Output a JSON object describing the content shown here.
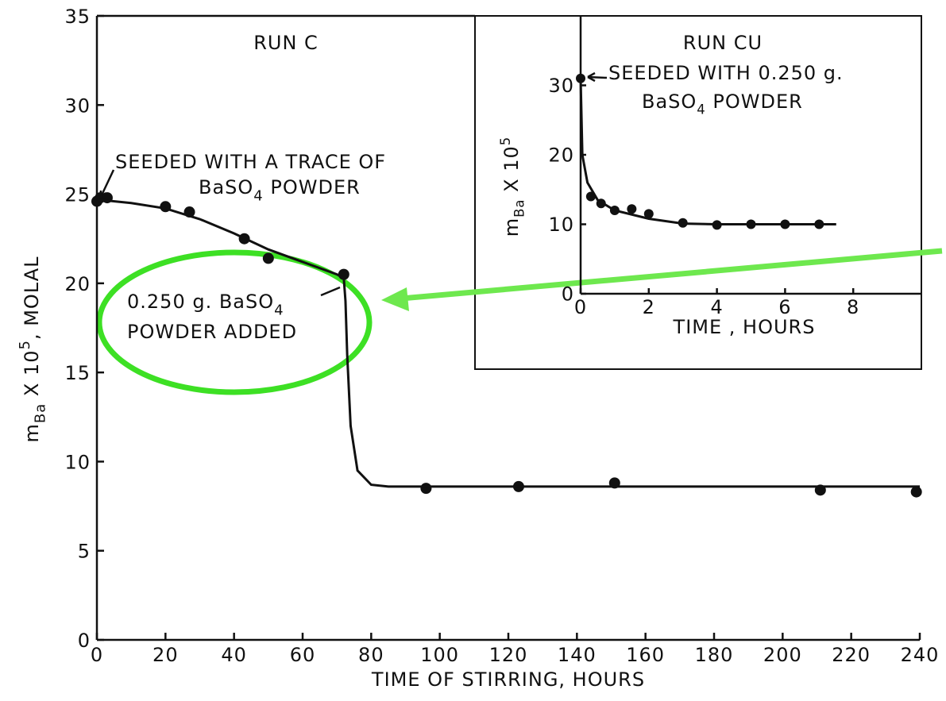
{
  "chart_data": [
    {
      "type": "scatter",
      "title": "RUN C",
      "xlabel": "TIME OF STIRRING, HOURS",
      "ylabel": [
        {
          "t": "m"
        },
        {
          "t": "Ba",
          "s": "sub"
        },
        {
          "t": " X 10"
        },
        {
          "t": "5",
          "s": "sup"
        },
        {
          "t": ", MOLAL"
        }
      ],
      "xlim": [
        0,
        240
      ],
      "ylim": [
        0,
        35
      ],
      "xticks": [
        0,
        20,
        40,
        60,
        80,
        100,
        120,
        140,
        160,
        180,
        200,
        220,
        240
      ],
      "yticks": [
        0,
        5,
        10,
        15,
        20,
        25,
        30,
        35
      ],
      "annotations": [
        [
          {
            "t": "SEEDED WITH A TRACE OF"
          }
        ],
        [
          {
            "t": "BaSO"
          },
          {
            "t": "4",
            "s": "sub"
          },
          {
            "t": " POWDER"
          }
        ],
        [
          {
            "t": "0.250 g. BaSO"
          },
          {
            "t": "4",
            "s": "sub"
          }
        ],
        [
          {
            "t": "POWDER ADDED"
          }
        ]
      ],
      "series": [
        {
          "color": "#111",
          "x": [
            0,
            1,
            3,
            20,
            27,
            43,
            50,
            72,
            96,
            123,
            151,
            211,
            239
          ],
          "values": [
            24.6,
            24.8,
            24.8,
            24.3,
            24.0,
            22.5,
            21.4,
            20.5,
            8.5,
            8.6,
            8.8,
            8.4,
            8.3
          ]
        },
        {
          "type": "line",
          "color": "#111",
          "x": [
            0,
            10,
            20,
            30,
            40,
            50,
            60,
            70,
            72,
            72.5,
            73,
            74,
            76,
            80,
            85,
            240
          ],
          "values": [
            24.7,
            24.5,
            24.2,
            23.6,
            22.8,
            21.9,
            21.2,
            20.5,
            20.3,
            19,
            16,
            12,
            9.5,
            8.7,
            8.6,
            8.6
          ]
        }
      ]
    },
    {
      "type": "scatter",
      "title": "RUN CU",
      "xlabel": "TIME , HOURS",
      "ylabel": [
        {
          "t": "m"
        },
        {
          "t": "Ba",
          "s": "sub"
        },
        {
          "t": " X 10"
        },
        {
          "t": "5",
          "s": "sup"
        }
      ],
      "xlim": [
        0,
        10
      ],
      "ylim": [
        0,
        40
      ],
      "xticks": [
        0,
        2,
        4,
        6,
        8
      ],
      "yticks": [
        0,
        10,
        20,
        30
      ],
      "annotations": [
        [
          {
            "t": "SEEDED WITH 0.250 g."
          }
        ],
        [
          {
            "t": "BaSO"
          },
          {
            "t": "4",
            "s": "sub"
          },
          {
            "t": " POWDER"
          }
        ]
      ],
      "series": [
        {
          "color": "#111",
          "x": [
            0,
            0.3,
            0.6,
            1,
            1.5,
            2,
            3,
            4,
            5,
            6,
            7
          ],
          "values": [
            31,
            14,
            13,
            12,
            12.2,
            11.5,
            10.2,
            9.9,
            10,
            10,
            10
          ]
        },
        {
          "type": "line",
          "color": "#111",
          "x": [
            0,
            0.05,
            0.2,
            0.5,
            1,
            2,
            3,
            4,
            7.5
          ],
          "values": [
            31,
            20,
            16,
            13.5,
            12,
            10.8,
            10.1,
            10,
            10
          ]
        }
      ]
    }
  ]
}
